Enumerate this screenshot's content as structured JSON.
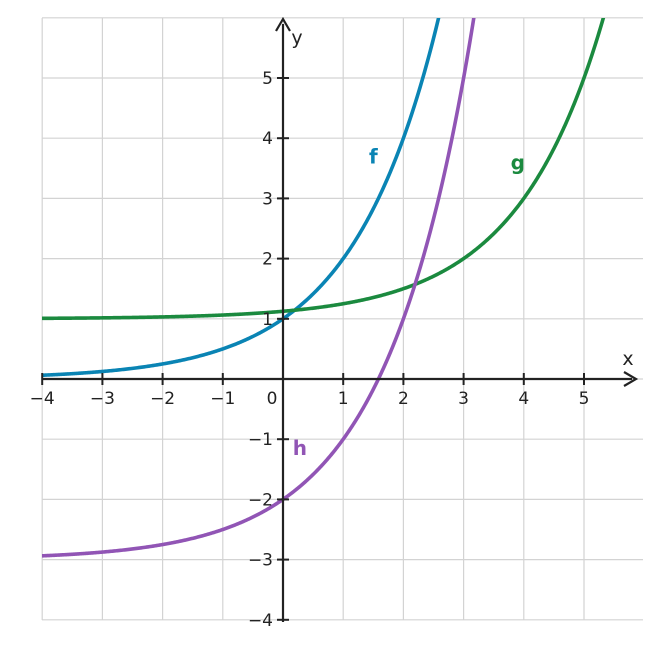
{
  "chart_data": {
    "type": "line",
    "title": "",
    "xlabel": "x",
    "ylabel": "y",
    "xlim": [
      -4,
      6
    ],
    "ylim": [
      -4,
      6
    ],
    "grid": true,
    "x_ticks": [
      -4,
      -3,
      -2,
      -1,
      0,
      1,
      2,
      3,
      4,
      5
    ],
    "x_tick_labels": [
      "−4",
      "−3",
      "−2",
      "−1",
      "0",
      "1",
      "2",
      "3",
      "4",
      "5"
    ],
    "y_ticks": [
      -4,
      -3,
      -2,
      -1,
      1,
      2,
      3,
      4,
      5
    ],
    "y_tick_labels": [
      "−4",
      "−3",
      "−2",
      "−1",
      "1",
      "2",
      "3",
      "4",
      "5"
    ],
    "series": [
      {
        "name": "f",
        "color": "#0a84b4",
        "x": [
          -4,
          -3,
          -2,
          -1,
          0,
          1,
          2,
          2.5
        ],
        "y": [
          0.0625,
          0.125,
          0.25,
          0.5,
          1,
          2,
          4,
          5.66
        ]
      },
      {
        "name": "g",
        "color": "#1b8a3f",
        "x": [
          -4,
          -3,
          -2,
          -1,
          0,
          1,
          2,
          3,
          4,
          5
        ],
        "y": [
          1.0,
          1.01,
          1.02,
          1.04,
          1.08,
          1.16,
          1.31,
          1.63,
          2.25,
          3.5
        ]
      },
      {
        "name": "h",
        "color": "#9155b5",
        "x": [
          -4,
          -3,
          -2,
          -1,
          0,
          1,
          2,
          3
        ],
        "y": [
          -2.94,
          -2.88,
          -2.75,
          -2.5,
          -2.0,
          -1.0,
          1.0,
          5.0
        ]
      }
    ]
  }
}
